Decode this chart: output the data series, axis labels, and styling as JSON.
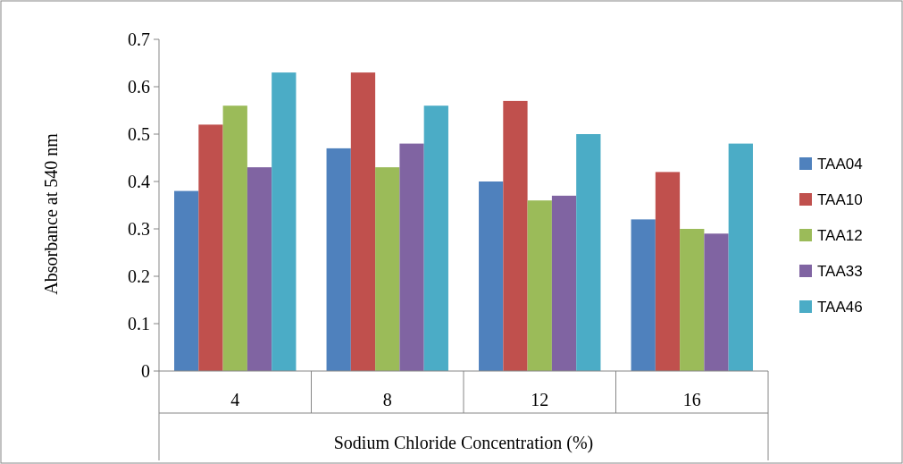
{
  "chart_data": {
    "type": "bar",
    "xlabel": "Sodium Chloride Concentration (%)",
    "ylabel": "Absorbance at 540 nm",
    "categories": [
      "4",
      "8",
      "12",
      "16"
    ],
    "series": [
      {
        "name": "TAA04",
        "color": "#4f81bd",
        "values": [
          0.38,
          0.47,
          0.4,
          0.32
        ]
      },
      {
        "name": "TAA10",
        "color": "#c0504d",
        "values": [
          0.52,
          0.63,
          0.57,
          0.42
        ]
      },
      {
        "name": "TAA12",
        "color": "#9bbb59",
        "values": [
          0.56,
          0.43,
          0.36,
          0.3
        ]
      },
      {
        "name": "TAA33",
        "color": "#8064a2",
        "values": [
          0.43,
          0.48,
          0.37,
          0.29
        ]
      },
      {
        "name": "TAA46",
        "color": "#4bacc6",
        "values": [
          0.63,
          0.56,
          0.5,
          0.48
        ]
      }
    ],
    "ylim": [
      0,
      0.7
    ],
    "yticks": [
      0,
      0.1,
      0.2,
      0.3,
      0.4,
      0.5,
      0.6,
      0.7
    ],
    "grid": false,
    "legend": "right"
  }
}
